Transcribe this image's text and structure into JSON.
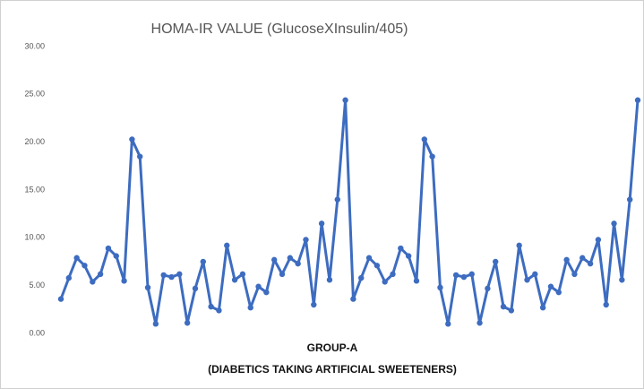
{
  "chart_data": {
    "type": "line",
    "title": "HOMA-IR VALUE (GlucoseXInsulin/405)",
    "x_label": [
      "GROUP-A",
      "(DIABETICS TAKING ARTIFICIAL SWEETENERS)"
    ],
    "categories": [
      null,
      null,
      null,
      null,
      null,
      null,
      null,
      null,
      null,
      null,
      null,
      null,
      null,
      null,
      null,
      null,
      null,
      null,
      null,
      null,
      null,
      null,
      null,
      null,
      null,
      null,
      null,
      null,
      null,
      null,
      null,
      null,
      null,
      null,
      null,
      null,
      null,
      null,
      null,
      null,
      null,
      null,
      null,
      null,
      null,
      null,
      null,
      null,
      null,
      null,
      null,
      null,
      null,
      null,
      null,
      null,
      null,
      null,
      null,
      null,
      null,
      null,
      null,
      null,
      null,
      null,
      null,
      null,
      null,
      null,
      null,
      null,
      null,
      null
    ],
    "series": [
      {
        "name": null,
        "color": "#3d6cc0",
        "values": [
          3.6,
          5.8,
          7.9,
          7.1,
          5.4,
          6.2,
          8.9,
          8.1,
          5.5,
          20.3,
          18.5,
          4.8,
          1.0,
          6.1,
          5.9,
          6.2,
          1.1,
          4.7,
          7.5,
          2.8,
          2.4,
          9.2,
          5.6,
          6.2,
          2.7,
          4.9,
          4.3,
          7.7,
          6.2,
          7.9,
          7.3,
          9.8,
          3.0,
          11.5,
          5.6,
          14.0,
          24.4,
          3.6,
          5.8,
          7.9,
          7.1,
          5.4,
          6.2,
          8.9,
          8.1,
          5.5,
          20.3,
          18.5,
          4.8,
          1.0,
          6.1,
          5.9,
          6.2,
          1.1,
          4.7,
          7.5,
          2.8,
          2.4,
          9.2,
          5.6,
          6.2,
          2.7,
          4.9,
          4.3,
          7.7,
          6.2,
          7.9,
          7.3,
          9.8,
          3.0,
          11.5,
          5.6,
          14.0,
          24.4
        ]
      }
    ],
    "ylim": [
      0,
      30
    ],
    "yticks": [
      {
        "value": 0,
        "label": "0.00"
      },
      {
        "value": 5,
        "label": "5.00"
      },
      {
        "value": 10,
        "label": "10.00"
      },
      {
        "value": 15,
        "label": "15.00"
      },
      {
        "value": 20,
        "label": "20.00"
      },
      {
        "value": 25,
        "label": "25.00"
      },
      {
        "value": 30,
        "label": "30.00"
      }
    ],
    "grid": false
  }
}
